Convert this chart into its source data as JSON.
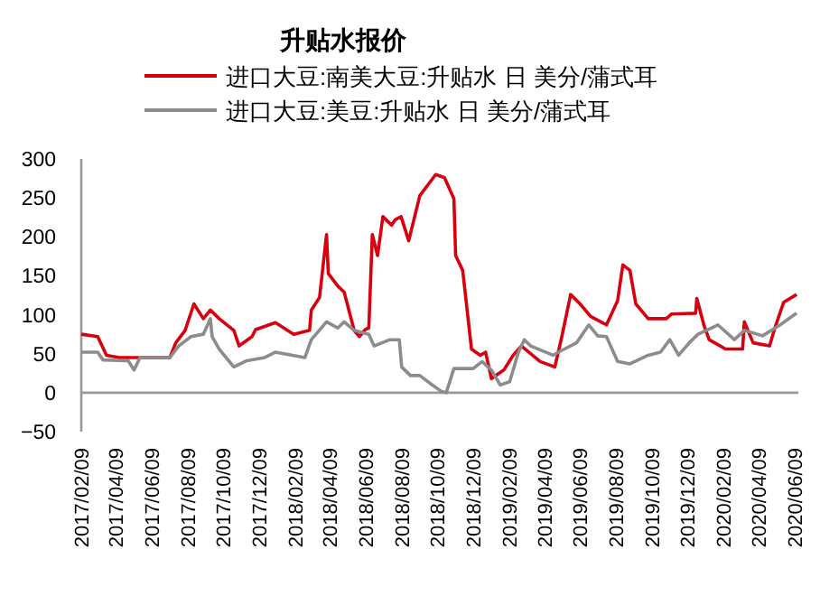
{
  "chart_data": {
    "type": "line",
    "title": "升贴水报价",
    "legend": "top",
    "marker": "none",
    "line_style": "solid",
    "xlim": [
      "2017-02-09",
      "2020-06-15"
    ],
    "ylim": [
      -50,
      300
    ],
    "yticks": [
      -50,
      0,
      50,
      100,
      150,
      200,
      250,
      300
    ],
    "xticks": [
      {
        "value": "2017-02-09",
        "label": "2017/02/09"
      },
      {
        "value": "2017-04-09",
        "label": "2017/04/09"
      },
      {
        "value": "2017-06-09",
        "label": "2017/06/09"
      },
      {
        "value": "2017-08-09",
        "label": "2017/08/09"
      },
      {
        "value": "2017-10-09",
        "label": "2017/10/09"
      },
      {
        "value": "2017-12-09",
        "label": "2017/12/09"
      },
      {
        "value": "2018-02-09",
        "label": "2018/02/09"
      },
      {
        "value": "2018-04-09",
        "label": "2018/04/09"
      },
      {
        "value": "2018-06-09",
        "label": "2018/06/09"
      },
      {
        "value": "2018-08-09",
        "label": "2018/08/09"
      },
      {
        "value": "2018-10-09",
        "label": "2018/10/09"
      },
      {
        "value": "2018-12-09",
        "label": "2018/12/09"
      },
      {
        "value": "2019-02-09",
        "label": "2019/02/09"
      },
      {
        "value": "2019-04-09",
        "label": "2019/04/09"
      },
      {
        "value": "2019-06-09",
        "label": "2019/06/09"
      },
      {
        "value": "2019-08-09",
        "label": "2019/08/09"
      },
      {
        "value": "2019-10-09",
        "label": "2019/10/09"
      },
      {
        "value": "2019-12-09",
        "label": "2019/12/09"
      },
      {
        "value": "2020-02-09",
        "label": "2020/02/09"
      },
      {
        "value": "2020-04-09",
        "label": "2020/04/09"
      },
      {
        "value": "2020-06-09",
        "label": "2020/06/09"
      }
    ],
    "series": [
      {
        "name": "进口大豆:南美大豆:升贴水 日 美分/蒲式耳",
        "color": "#d7000f",
        "x": [
          "2017-02-09",
          "2017-03-09",
          "2017-03-24",
          "2017-04-15",
          "2017-07-10",
          "2017-07-20",
          "2017-08-05",
          "2017-08-20",
          "2017-09-05",
          "2017-09-17",
          "2017-10-02",
          "2017-10-27",
          "2017-11-05",
          "2017-11-27",
          "2017-12-03",
          "2018-01-06",
          "2018-02-06",
          "2018-03-05",
          "2018-03-08",
          "2018-03-22",
          "2018-04-03",
          "2018-04-06",
          "2018-04-22",
          "2018-05-03",
          "2018-05-20",
          "2018-05-29",
          "2018-06-08",
          "2018-06-14",
          "2018-06-20",
          "2018-06-29",
          "2018-07-08",
          "2018-07-23",
          "2018-07-29",
          "2018-08-08",
          "2018-08-21",
          "2018-09-09",
          "2018-10-06",
          "2018-10-21",
          "2018-11-06",
          "2018-11-09",
          "2018-11-21",
          "2018-12-06",
          "2018-12-21",
          "2018-12-30",
          "2019-01-09",
          "2019-01-30",
          "2019-02-15",
          "2019-03-01",
          "2019-04-02",
          "2019-04-27",
          "2019-05-09",
          "2019-05-24",
          "2019-06-09",
          "2019-06-27",
          "2019-07-24",
          "2019-08-12",
          "2019-08-21",
          "2019-09-02",
          "2019-09-12",
          "2019-10-03",
          "2019-11-03",
          "2019-11-12",
          "2019-12-23",
          "2019-12-25",
          "2020-01-06",
          "2020-01-15",
          "2020-02-12",
          "2020-03-12",
          "2020-03-15",
          "2020-03-30",
          "2020-04-27",
          "2020-05-06",
          "2020-05-21",
          "2020-06-12"
        ],
        "values": [
          75,
          72,
          48,
          45,
          45,
          64,
          80,
          114,
          95,
          106,
          95,
          80,
          60,
          72,
          81,
          90,
          75,
          80,
          106,
          122,
          203,
          153,
          137,
          129,
          80,
          72,
          81,
          83,
          203,
          176,
          226,
          215,
          222,
          226,
          195,
          253,
          280,
          276,
          249,
          176,
          157,
          56,
          48,
          52,
          18,
          29,
          48,
          60,
          40,
          33,
          72,
          126,
          114,
          98,
          87,
          118,
          164,
          157,
          114,
          95,
          95,
          101,
          102,
          121,
          87,
          68,
          56,
          56,
          91,
          64,
          60,
          83,
          116,
          126
        ]
      },
      {
        "name": "进口大豆:美豆:升贴水 日 美分/蒲式耳",
        "color": "#8c8c8c",
        "x": [
          "2017-02-09",
          "2017-03-09",
          "2017-03-18",
          "2017-04-30",
          "2017-05-10",
          "2017-05-20",
          "2017-07-10",
          "2017-07-25",
          "2017-08-15",
          "2017-09-05",
          "2017-09-17",
          "2017-09-20",
          "2017-10-02",
          "2017-10-27",
          "2017-11-18",
          "2017-12-18",
          "2018-01-06",
          "2018-02-25",
          "2018-03-08",
          "2018-04-03",
          "2018-04-22",
          "2018-05-03",
          "2018-05-20",
          "2018-06-14",
          "2018-06-23",
          "2018-07-20",
          "2018-08-05",
          "2018-08-09",
          "2018-08-24",
          "2018-09-09",
          "2018-09-30",
          "2018-10-15",
          "2018-10-24",
          "2018-11-06",
          "2018-12-09",
          "2018-12-24",
          "2019-01-09",
          "2019-01-24",
          "2019-02-09",
          "2019-02-24",
          "2019-03-06",
          "2019-03-17",
          "2019-04-24",
          "2019-05-03",
          "2019-06-03",
          "2019-06-24",
          "2019-07-09",
          "2019-07-24",
          "2019-08-12",
          "2019-09-02",
          "2019-10-03",
          "2019-10-24",
          "2019-11-09",
          "2019-11-24",
          "2019-12-12",
          "2019-12-27",
          "2020-01-30",
          "2020-02-27",
          "2020-03-15",
          "2020-04-15",
          "2020-05-15",
          "2020-06-12"
        ],
        "values": [
          52,
          52,
          42,
          41,
          29,
          45,
          45,
          60,
          72,
          75,
          95,
          72,
          56,
          33,
          41,
          45,
          52,
          45,
          68,
          91,
          83,
          91,
          80,
          75,
          60,
          68,
          68,
          33,
          22,
          22,
          10,
          2,
          0,
          31,
          31,
          40,
          29,
          10,
          14,
          52,
          68,
          60,
          48,
          52,
          64,
          87,
          73,
          72,
          40,
          37,
          48,
          52,
          68,
          48,
          64,
          75,
          87,
          68,
          80,
          73,
          87,
          102
        ]
      }
    ]
  }
}
